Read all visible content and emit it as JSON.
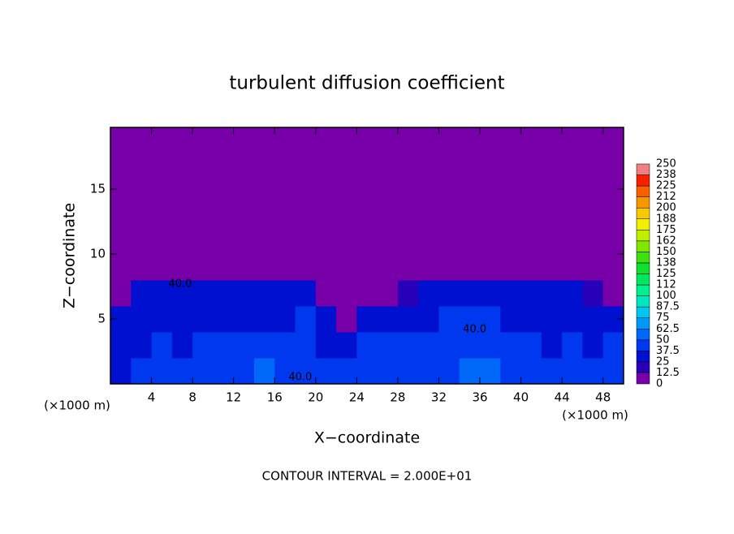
{
  "chart_data": {
    "type": "heatmap",
    "title": "turbulent diffusion coefficient",
    "x_label": "X−coordinate",
    "y_label": "Z−coordinate",
    "x_unit_labels": [
      "(×1000 m)",
      "(×1000 m)"
    ],
    "footer": "CONTOUR INTERVAL = 2.000E+01",
    "xlim": [
      0,
      50
    ],
    "ylim": [
      0,
      19.75
    ],
    "xticks": [
      4,
      8,
      12,
      16,
      20,
      24,
      28,
      32,
      36,
      40,
      44,
      48
    ],
    "yticks": [
      5,
      10,
      15
    ],
    "xbins": [
      0,
      2,
      4,
      6,
      8,
      10,
      12,
      14,
      16,
      18,
      20,
      22,
      24,
      26,
      28,
      30,
      32,
      34,
      36,
      38,
      40,
      42,
      44,
      46,
      48,
      50
    ],
    "ybins": [
      0,
      2,
      4,
      6,
      8,
      19.75
    ],
    "values": [
      [
        35,
        40,
        40,
        38,
        40,
        42,
        45,
        60,
        42,
        40,
        40,
        38,
        40,
        40,
        40,
        42,
        45,
        50,
        55,
        45,
        42,
        40,
        40,
        38,
        40
      ],
      [
        30,
        35,
        38,
        35,
        38,
        40,
        38,
        42,
        40,
        38,
        35,
        30,
        40,
        38,
        38,
        40,
        42,
        45,
        40,
        38,
        38,
        35,
        38,
        35,
        38
      ],
      [
        25,
        30,
        35,
        32,
        35,
        35,
        32,
        35,
        35,
        38,
        30,
        0,
        28,
        30,
        32,
        35,
        38,
        40,
        38,
        35,
        35,
        30,
        32,
        30,
        25
      ],
      [
        12,
        25,
        30,
        30,
        30,
        28,
        28,
        30,
        30,
        25,
        12,
        0,
        0,
        0,
        20,
        25,
        28,
        35,
        30,
        28,
        28,
        25,
        25,
        20,
        10
      ],
      [
        0,
        0,
        0,
        0,
        0,
        0,
        0,
        0,
        0,
        0,
        0,
        0,
        0,
        0,
        0,
        0,
        0,
        0,
        0,
        0,
        0,
        0,
        0,
        0,
        0
      ]
    ],
    "contour_labels": [
      {
        "text": "40.0",
        "x": 6.8,
        "y": 7.7
      },
      {
        "text": "40.0",
        "x": 18.5,
        "y": 0.5
      },
      {
        "text": "40.0",
        "x": 35.5,
        "y": 4.2
      }
    ],
    "colorbar": {
      "levels": [
        0,
        {
          "value": 12.5,
          "label": "12.5"
        },
        25,
        {
          "value": 37.5,
          "label": "37.5"
        },
        50,
        {
          "value": 62.5,
          "label": "62.5"
        },
        75,
        {
          "value": 87.5,
          "label": "87.5"
        },
        100,
        {
          "value": 112.5,
          "label": "112"
        },
        125,
        {
          "value": 137.5,
          "label": "138"
        },
        150,
        {
          "value": 162.5,
          "label": "162"
        },
        175,
        {
          "value": 187.5,
          "label": "188"
        },
        200,
        {
          "value": 212.5,
          "label": "212"
        },
        225,
        {
          "value": 237.5,
          "label": "238"
        },
        250
      ],
      "colors": [
        "#7800a8",
        "#2800b8",
        "#0010d0",
        "#0038f0",
        "#0068f8",
        "#0098f8",
        "#00c8f0",
        "#00e8c0",
        "#00f090",
        "#00e860",
        "#10e030",
        "#40e010",
        "#80e800",
        "#c0f000",
        "#f0f000",
        "#f8c800",
        "#f89800",
        "#f86000",
        "#f82000",
        "#f08080"
      ]
    }
  }
}
